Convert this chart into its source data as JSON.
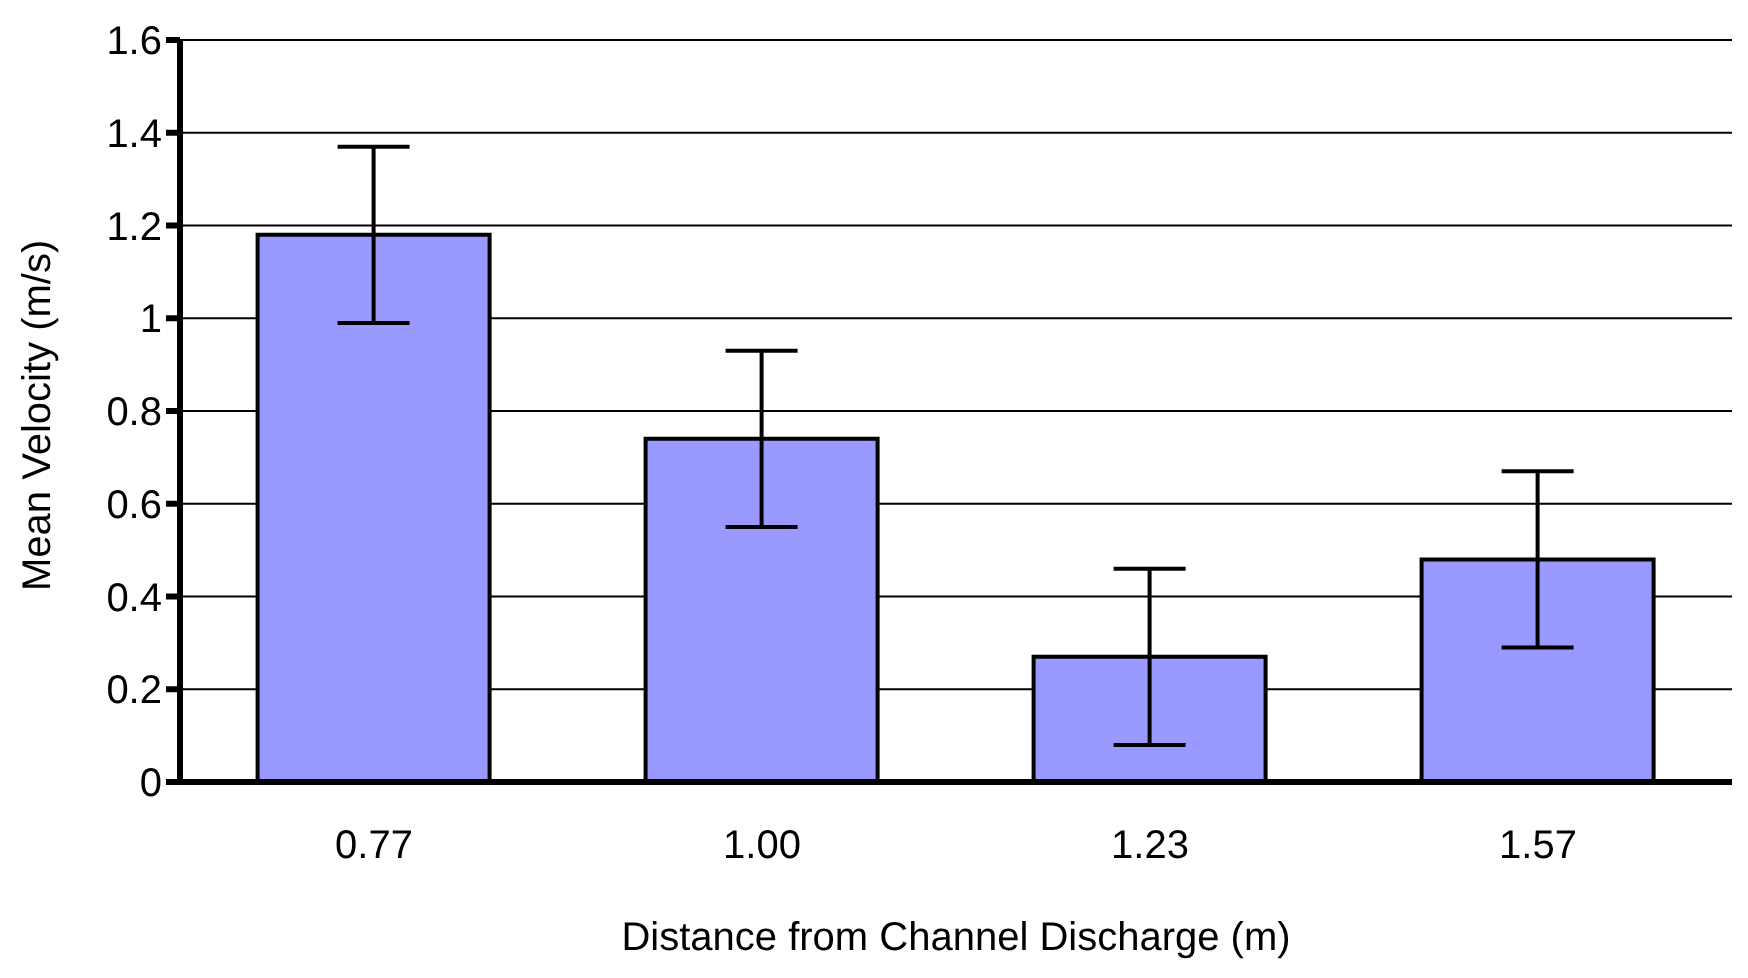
{
  "chart_data": {
    "type": "bar",
    "xlabel": "Distance from Channel Discharge (m)",
    "ylabel": "Mean Velocity (m/s)",
    "categories": [
      "0.77",
      "1.00",
      "1.23",
      "1.57"
    ],
    "values": [
      1.18,
      0.74,
      0.27,
      0.48
    ],
    "errors": [
      0.19,
      0.19,
      0.19,
      0.19
    ],
    "color": "#9999ff",
    "ylim": [
      0,
      1.6
    ],
    "yticks": [
      0,
      0.2,
      0.4,
      0.6,
      0.8,
      1,
      1.2,
      1.4,
      1.6
    ],
    "grid": "y",
    "legend": false
  }
}
